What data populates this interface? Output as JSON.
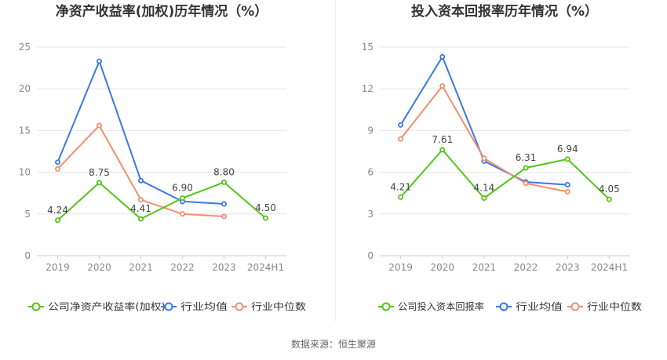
{
  "source_text": "数据来源：恒生聚源",
  "colors": {
    "company": "#52c41a",
    "avg": "#3b78e7",
    "median": "#f0906e",
    "grid": "#e6e6e6",
    "axis_text": "#888888",
    "label_text": "#444444",
    "title_text": "#333333"
  },
  "chart_data": [
    {
      "type": "line",
      "title": "净资产收益率(加权)历年情况（%）",
      "categories": [
        "2019",
        "2020",
        "2021",
        "2022",
        "2023",
        "2024H1"
      ],
      "ylim": [
        0,
        25
      ],
      "yticks": [
        0,
        5,
        10,
        15,
        20,
        25
      ],
      "series": [
        {
          "name": "公司净资产收益率(加权)",
          "key": "company",
          "values": [
            4.24,
            8.75,
            4.41,
            6.9,
            8.8,
            4.5
          ],
          "labels": [
            "4.24",
            "8.75",
            "4.41",
            "6.90",
            "8.80",
            "4.50"
          ]
        },
        {
          "name": "行业均值",
          "key": "avg",
          "values": [
            11.2,
            23.3,
            9.0,
            6.5,
            6.2,
            null
          ]
        },
        {
          "name": "行业中位数",
          "key": "median",
          "values": [
            10.4,
            15.6,
            6.7,
            5.0,
            4.7,
            null
          ]
        }
      ],
      "grid": true,
      "legend": "bottom"
    },
    {
      "type": "line",
      "title": "投入资本回报率历年情况（%）",
      "categories": [
        "2019",
        "2020",
        "2021",
        "2022",
        "2023",
        "2024H1"
      ],
      "ylim": [
        0,
        15
      ],
      "yticks": [
        0,
        3,
        6,
        9,
        12,
        15
      ],
      "series": [
        {
          "name": "公司投入资本回报率",
          "key": "company",
          "values": [
            4.21,
            7.61,
            4.14,
            6.31,
            6.94,
            4.05
          ],
          "labels": [
            "4.21",
            "7.61",
            "4.14",
            "6.31",
            "6.94",
            "4.05"
          ]
        },
        {
          "name": "行业均值",
          "key": "avg",
          "values": [
            9.4,
            14.3,
            6.8,
            5.3,
            5.1,
            null
          ]
        },
        {
          "name": "行业中位数",
          "key": "median",
          "values": [
            8.4,
            12.2,
            7.0,
            5.2,
            4.6,
            null
          ]
        }
      ],
      "grid": true,
      "legend": "bottom"
    }
  ]
}
